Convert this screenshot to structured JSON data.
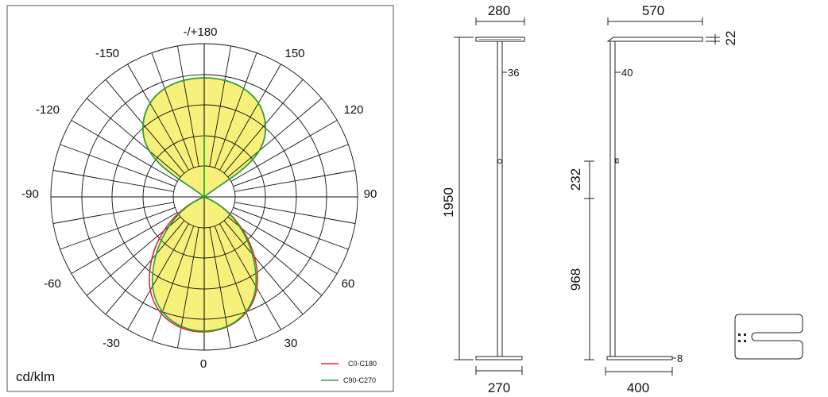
{
  "polar": {
    "unit_label": "cd/klm",
    "angle_labels": {
      "top": "-/+180",
      "bottom": "0",
      "left": "-90",
      "right": "90",
      "m150": "-150",
      "p150": "150",
      "m120": "-120",
      "p120": "120",
      "m60": "-60",
      "p60": "60",
      "m30": "-30",
      "p30": "30"
    },
    "legend": [
      {
        "label": "C0-C180",
        "color": "#e8262b"
      },
      {
        "label": "C90-C270",
        "color": "#1aa832"
      }
    ],
    "fill_color": "#f7f07a"
  },
  "front_view": {
    "dims": {
      "head_width": "280",
      "height": "1950",
      "pole_offset": "36",
      "base_width": "270"
    }
  },
  "side_view": {
    "dims": {
      "head_length": "570",
      "head_thickness": "22",
      "pole_offset": "40",
      "switch_segment": "232",
      "switch_height": "968",
      "base_thickness": "8",
      "base_length": "400"
    }
  }
}
